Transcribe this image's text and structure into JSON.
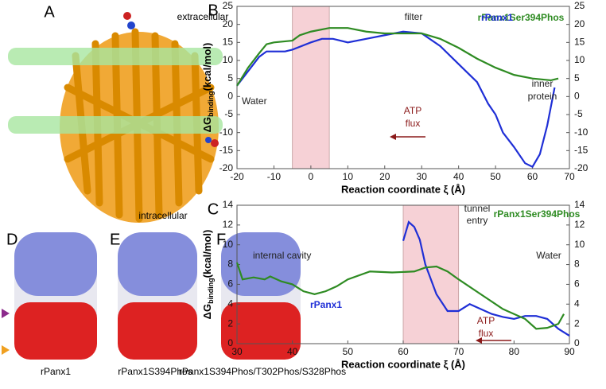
{
  "figure": {
    "panel_a": {
      "letter": "A",
      "top_label": "extracellular",
      "bottom_label": "intracellular"
    },
    "panel_d": {
      "letter": "D",
      "caption": "rPanx1"
    },
    "panel_e": {
      "letter": "E",
      "caption": "rPanx1S394Phos"
    },
    "panel_f": {
      "letter": "F",
      "caption": "rPanx1S394Phos/T302Phos/S328Phos"
    }
  },
  "chart_data": [
    {
      "type": "line",
      "letter": "B",
      "ylabel": "ΔG",
      "ylabel_sub": "binding",
      "ylabel_unit": "(kcal/mol)",
      "xlabel": "Reaction coordinate ξ (Å)",
      "xlim": [
        -20,
        70
      ],
      "xticks": [
        -20,
        -10,
        0,
        10,
        20,
        30,
        40,
        50,
        60,
        70
      ],
      "ylim": [
        -20,
        25
      ],
      "yticks": [
        -20,
        -15,
        -10,
        -5,
        0,
        5,
        10,
        15,
        20,
        25
      ],
      "y2lim": [
        -20,
        25
      ],
      "y2ticks": [
        -20,
        -15,
        -10,
        -5,
        0,
        5,
        10,
        15,
        20,
        25
      ],
      "shaded": [
        -5,
        5
      ],
      "series": [
        {
          "name": "rPanx1",
          "color": "#1f2fd6",
          "x": [
            -20,
            -17,
            -14,
            -12,
            -10,
            -7,
            -5,
            0,
            3,
            6,
            10,
            15,
            20,
            25,
            30,
            35,
            40,
            45,
            48,
            50,
            52,
            55,
            58,
            60,
            62,
            64,
            66
          ],
          "values": [
            3,
            7,
            11,
            12.5,
            12.5,
            12.5,
            13,
            15,
            16,
            16,
            15,
            16,
            17,
            18,
            17.5,
            14,
            9,
            4,
            -2,
            -5,
            -10,
            -14,
            -18.5,
            -19.5,
            -16,
            -8,
            2.5
          ]
        },
        {
          "name": "rPanx1Ser394Phos",
          "color": "#2e8b22",
          "x": [
            -20,
            -17,
            -14,
            -12,
            -10,
            -5,
            -3,
            0,
            5,
            10,
            15,
            20,
            25,
            30,
            35,
            40,
            45,
            50,
            55,
            60,
            65,
            67
          ],
          "values": [
            3,
            8,
            12,
            14.5,
            15,
            15.5,
            17,
            18,
            19,
            19,
            18,
            17.5,
            17.5,
            17.5,
            16,
            13.5,
            10.5,
            8,
            6,
            5,
            4.5,
            5
          ]
        }
      ],
      "annotations": [
        "filter",
        "Water",
        "ATP",
        "flux",
        "inner",
        "protein"
      ]
    },
    {
      "type": "line",
      "letter": "C",
      "ylabel": "ΔG",
      "ylabel_sub": "binding",
      "ylabel_unit": "(kcal/mol)",
      "xlabel": "Reaction coordinate ξ (Å)",
      "xlim": [
        30,
        90
      ],
      "xticks": [
        30,
        40,
        50,
        60,
        70,
        80,
        90
      ],
      "ylim": [
        0,
        14
      ],
      "yticks": [
        0,
        2,
        4,
        6,
        8,
        10,
        12,
        14
      ],
      "y2lim": [
        0,
        14
      ],
      "y2ticks": [
        0,
        2,
        4,
        6,
        8,
        10,
        12,
        14
      ],
      "shaded": [
        60,
        70
      ],
      "series": [
        {
          "name": "rPanx1",
          "color": "#1f2fd6",
          "x": [
            60,
            61,
            62,
            63,
            64,
            66,
            68,
            70,
            72,
            74,
            76,
            78,
            80,
            82,
            84,
            86,
            88,
            90
          ],
          "values": [
            10.4,
            12.3,
            11.8,
            10.5,
            8,
            5,
            3.3,
            3.3,
            4,
            3.5,
            3,
            2.7,
            2.5,
            2.8,
            2.8,
            2.5,
            1.5,
            0.8
          ]
        },
        {
          "name": "rPanx1Ser394Phos",
          "color": "#2e8b22",
          "x": [
            30,
            31,
            33,
            35,
            36,
            38,
            40,
            42,
            44,
            46,
            48,
            50,
            54,
            58,
            62,
            64,
            66,
            68,
            70,
            74,
            78,
            82,
            84,
            86,
            88,
            89
          ],
          "values": [
            8.2,
            6.5,
            6.7,
            6.5,
            6.8,
            6.3,
            6,
            5.3,
            5,
            5.3,
            5.8,
            6.5,
            7.3,
            7.2,
            7.3,
            7.7,
            7.8,
            7.3,
            6.5,
            5,
            3.5,
            2.5,
            1.5,
            1.6,
            2,
            3
          ]
        }
      ],
      "annotations": [
        "tunnel",
        "entry",
        "internal cavity",
        "Water",
        "ATP",
        "flux"
      ]
    }
  ]
}
